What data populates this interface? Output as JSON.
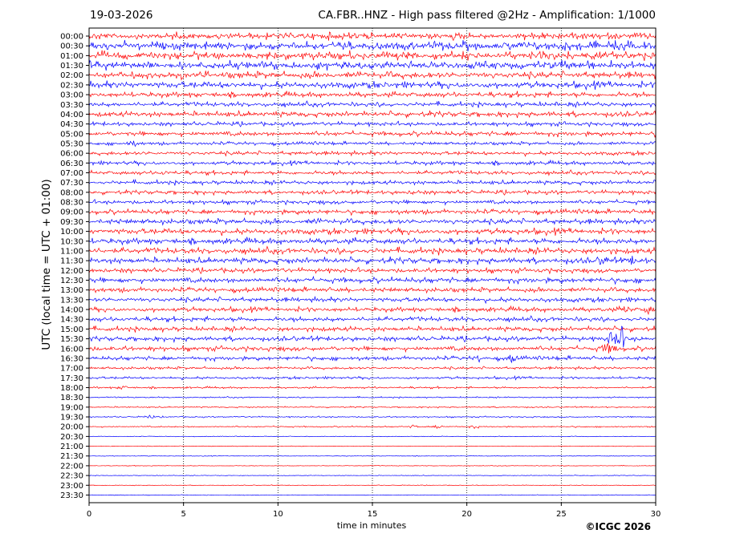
{
  "header": {
    "date": "19-03-2026",
    "title": "CA.FBR..HNZ - High pass filtered @2Hz - Amplification: 1/1000"
  },
  "footer": {
    "credit": "©ICGC 2026"
  },
  "colors": {
    "trace_a": "#ff0000",
    "trace_b": "#0000ff",
    "grid": "#000000"
  },
  "chart_data": {
    "type": "line",
    "title": "CA.FBR..HNZ - High pass filtered @2Hz - Amplification: 1/1000",
    "xlabel": "time in minutes",
    "ylabel": "UTC (local time = UTC + 01:00)",
    "xlim": [
      0,
      30
    ],
    "x_ticks": [
      "0",
      "5",
      "10",
      "15",
      "20",
      "25",
      "30"
    ],
    "x_tick_values": [
      0,
      5,
      10,
      15,
      20,
      25,
      30
    ],
    "grid": "vertical dotted at x ticks",
    "row_labels": [
      "00:00",
      "00:30",
      "01:00",
      "01:30",
      "02:00",
      "02:30",
      "03:00",
      "03:30",
      "04:00",
      "04:30",
      "05:00",
      "05:30",
      "06:00",
      "06:30",
      "07:00",
      "07:30",
      "08:00",
      "08:30",
      "09:00",
      "09:30",
      "10:00",
      "10:30",
      "11:00",
      "11:30",
      "12:00",
      "12:30",
      "13:00",
      "13:30",
      "14:00",
      "14:30",
      "15:00",
      "15:30",
      "16:00",
      "16:30",
      "17:00",
      "17:30",
      "18:00",
      "18:30",
      "19:00",
      "19:30",
      "20:00",
      "20:30",
      "21:00",
      "21:30",
      "22:00",
      "22:30",
      "23:00",
      "23:30"
    ],
    "row_colors": [
      "red",
      "blue"
    ],
    "relative_noise_level": [
      0.5,
      0.6,
      0.6,
      0.6,
      0.5,
      0.5,
      0.4,
      0.35,
      0.4,
      0.3,
      0.35,
      0.25,
      0.3,
      0.3,
      0.3,
      0.3,
      0.3,
      0.3,
      0.35,
      0.4,
      0.45,
      0.45,
      0.45,
      0.45,
      0.35,
      0.4,
      0.35,
      0.35,
      0.35,
      0.35,
      0.35,
      0.35,
      0.35,
      0.3,
      0.2,
      0.2,
      0.15,
      0.1,
      0.1,
      0.1,
      0.1,
      0.05,
      0.05,
      0.05,
      0.05,
      0.05,
      0.05,
      0.05
    ],
    "events": [
      {
        "row": "05:30",
        "x": 2.3,
        "amplitude": 0.5
      },
      {
        "row": "07:00",
        "x": 4.0,
        "amplitude": 0.3
      },
      {
        "row": "08:00",
        "x": 17.2,
        "amplitude": 0.3
      },
      {
        "row": "09:30",
        "x": 12.0,
        "amplitude": 0.3
      },
      {
        "row": "11:30",
        "x": 27.2,
        "amplitude": 0.7
      },
      {
        "row": "11:30",
        "x": 28.8,
        "amplitude": 0.5
      },
      {
        "row": "14:00",
        "x": 28.4,
        "amplitude": 0.6
      },
      {
        "row": "14:00",
        "x": 29.6,
        "amplitude": 0.7
      },
      {
        "row": "15:30",
        "x": 27.7,
        "amplitude": 1.6
      },
      {
        "row": "15:30",
        "x": 28.2,
        "amplitude": 2.5
      },
      {
        "row": "16:00",
        "x": 27.3,
        "amplitude": 0.8
      },
      {
        "row": "16:00",
        "x": 27.7,
        "amplitude": 0.9
      },
      {
        "row": "16:30",
        "x": 20.6,
        "amplitude": 0.5
      },
      {
        "row": "16:30",
        "x": 22.4,
        "amplitude": 0.7
      },
      {
        "row": "18:00",
        "x": 1.8,
        "amplitude": 0.4
      },
      {
        "row": "19:30",
        "x": 3.2,
        "amplitude": 0.4
      },
      {
        "row": "20:00",
        "x": 17.2,
        "amplitude": 0.3
      },
      {
        "row": "20:00",
        "x": 18.5,
        "amplitude": 0.4
      },
      {
        "row": "20:00",
        "x": 20.4,
        "amplitude": 0.3
      }
    ]
  }
}
